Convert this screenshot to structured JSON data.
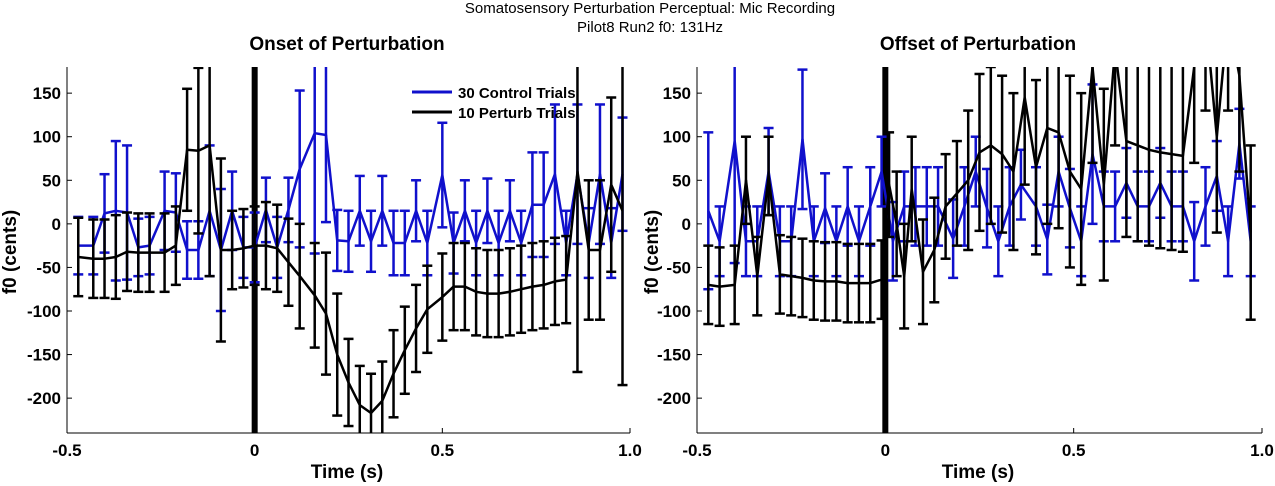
{
  "suptitle": {
    "line1": "Somatosensory Perturbation Perceptual: Mic Recording",
    "line2": "Pilot8 Run2   f0: 131Hz"
  },
  "colors": {
    "control": "#1010cc",
    "perturb": "#000000",
    "marker": "#000000"
  },
  "chart_data": [
    {
      "type": "line",
      "title": "Onset of Perturbation",
      "xlabel": "Time (s)",
      "ylabel": "f0 (cents)",
      "xlim": [
        -0.5,
        1.0
      ],
      "ylim": [
        -240,
        180
      ],
      "xticks": [
        -0.5,
        0,
        0.5,
        1.0
      ],
      "xtick_labels": [
        "-0.5",
        "0",
        "0.5",
        "1.0"
      ],
      "yticks": [
        -200,
        -150,
        -100,
        -50,
        0,
        50,
        100,
        150
      ],
      "ytick_labels": [
        "-200",
        "-150",
        "-100",
        "-50",
        "0",
        "50",
        "100",
        "150"
      ],
      "marker_x": 0,
      "legend": {
        "position": "top-right",
        "entries": [
          "30 Control Trials",
          "10 Perturb Trials"
        ]
      },
      "series": [
        {
          "name": "30 Control Trials",
          "x": [
            -0.47,
            -0.43,
            -0.4,
            -0.37,
            -0.34,
            -0.31,
            -0.28,
            -0.24,
            -0.21,
            -0.18,
            -0.15,
            -0.12,
            -0.09,
            -0.06,
            -0.03,
            0.0,
            0.03,
            0.06,
            0.09,
            0.12,
            0.16,
            0.19,
            0.22,
            0.25,
            0.28,
            0.31,
            0.34,
            0.37,
            0.4,
            0.43,
            0.46,
            0.5,
            0.53,
            0.56,
            0.59,
            0.62,
            0.65,
            0.68,
            0.71,
            0.74,
            0.77,
            0.8,
            0.83,
            0.86,
            0.89,
            0.92,
            0.95,
            0.98
          ],
          "y": [
            -25,
            -25,
            12,
            15,
            13,
            -27,
            -25,
            15,
            13,
            -30,
            -30,
            15,
            -30,
            15,
            -27,
            -27,
            16,
            -27,
            16,
            63,
            104,
            102,
            -19,
            -20,
            15,
            -20,
            15,
            -22,
            -22,
            15,
            -22,
            56,
            -22,
            15,
            -22,
            15,
            -22,
            15,
            -22,
            22,
            22,
            57,
            -22,
            57,
            -22,
            57,
            -22,
            57
          ],
          "err": [
            33,
            33,
            45,
            80,
            77,
            33,
            33,
            45,
            45,
            33,
            33,
            75,
            70,
            45,
            35,
            40,
            37,
            35,
            37,
            90,
            138,
            100,
            35,
            35,
            40,
            35,
            40,
            37,
            37,
            35,
            37,
            60,
            35,
            35,
            37,
            37,
            37,
            35,
            37,
            60,
            60,
            80,
            37,
            80,
            40,
            80,
            40,
            65
          ]
        },
        {
          "name": "10 Perturb Trials",
          "x": [
            -0.47,
            -0.43,
            -0.4,
            -0.37,
            -0.34,
            -0.31,
            -0.28,
            -0.24,
            -0.21,
            -0.18,
            -0.15,
            -0.12,
            -0.09,
            -0.06,
            -0.03,
            0.0,
            0.03,
            0.06,
            0.09,
            0.12,
            0.16,
            0.19,
            0.22,
            0.25,
            0.28,
            0.31,
            0.34,
            0.37,
            0.4,
            0.43,
            0.46,
            0.5,
            0.53,
            0.56,
            0.59,
            0.62,
            0.65,
            0.68,
            0.71,
            0.74,
            0.77,
            0.8,
            0.83,
            0.86,
            0.89,
            0.92,
            0.95,
            0.98
          ],
          "y": [
            -38,
            -40,
            -40,
            -38,
            -32,
            -33,
            -33,
            -33,
            -25,
            85,
            84,
            90,
            -30,
            -30,
            -28,
            -25,
            -25,
            -28,
            -44,
            -60,
            -82,
            -103,
            -150,
            -182,
            -208,
            -217,
            -203,
            -172,
            -145,
            -120,
            -98,
            -84,
            -72,
            -72,
            -78,
            -80,
            -80,
            -78,
            -75,
            -72,
            -70,
            -66,
            -64,
            60,
            -30,
            -30,
            45,
            15
          ],
          "err": [
            45,
            45,
            45,
            48,
            45,
            45,
            45,
            45,
            45,
            70,
            95,
            150,
            105,
            45,
            45,
            45,
            50,
            50,
            50,
            60,
            60,
            70,
            70,
            50,
            45,
            45,
            45,
            50,
            50,
            50,
            50,
            50,
            50,
            50,
            50,
            50,
            50,
            50,
            50,
            50,
            50,
            50,
            50,
            230,
            80,
            80,
            100,
            200
          ]
        }
      ]
    },
    {
      "type": "line",
      "title": "Offset of Perturbation",
      "xlabel": "Time (s)",
      "ylabel": "f0 (cents)",
      "xlim": [
        -0.5,
        1.0
      ],
      "ylim": [
        -240,
        180
      ],
      "xticks": [
        -0.5,
        0,
        0.5,
        1.0
      ],
      "xtick_labels": [
        "-0.5",
        "0",
        "0.5",
        "1.0"
      ],
      "yticks": [
        -200,
        -150,
        -100,
        -50,
        0,
        50,
        100,
        150
      ],
      "ytick_labels": [
        "-200",
        "-150",
        "-100",
        "-50",
        "0",
        "50",
        "100",
        "150"
      ],
      "marker_x": 0,
      "series": [
        {
          "name": "30 Control Trials",
          "x": [
            -0.47,
            -0.44,
            -0.4,
            -0.37,
            -0.34,
            -0.31,
            -0.28,
            -0.25,
            -0.22,
            -0.19,
            -0.16,
            -0.13,
            -0.1,
            -0.07,
            -0.04,
            -0.01,
            0.02,
            0.05,
            0.08,
            0.11,
            0.14,
            0.18,
            0.21,
            0.24,
            0.27,
            0.3,
            0.33,
            0.36,
            0.4,
            0.43,
            0.46,
            0.49,
            0.52,
            0.55,
            0.58,
            0.61,
            0.64,
            0.67,
            0.7,
            0.73,
            0.76,
            0.79,
            0.82,
            0.85,
            0.88,
            0.91,
            0.94,
            0.97
          ],
          "y": [
            15,
            -20,
            95,
            -20,
            -20,
            60,
            -20,
            -20,
            97,
            -20,
            18,
            -20,
            20,
            -20,
            20,
            60,
            -20,
            20,
            20,
            20,
            20,
            -17,
            20,
            60,
            18,
            -20,
            20,
            45,
            20,
            -18,
            60,
            18,
            -20,
            80,
            20,
            20,
            47,
            20,
            20,
            47,
            20,
            20,
            -20,
            20,
            55,
            -20,
            92,
            -20
          ],
          "err": [
            90,
            40,
            140,
            40,
            40,
            50,
            40,
            40,
            80,
            40,
            40,
            40,
            45,
            40,
            45,
            40,
            45,
            40,
            45,
            45,
            45,
            45,
            45,
            40,
            45,
            40,
            45,
            40,
            45,
            40,
            40,
            45,
            40,
            80,
            40,
            40,
            40,
            40,
            40,
            40,
            40,
            40,
            45,
            45,
            40,
            40,
            40,
            40
          ]
        },
        {
          "name": "10 Perturb Trials",
          "x": [
            -0.47,
            -0.44,
            -0.4,
            -0.37,
            -0.34,
            -0.31,
            -0.28,
            -0.25,
            -0.22,
            -0.19,
            -0.16,
            -0.13,
            -0.1,
            -0.07,
            -0.04,
            -0.01,
            0.01,
            0.03,
            0.05,
            0.07,
            0.1,
            0.13,
            0.16,
            0.19,
            0.22,
            0.25,
            0.28,
            0.31,
            0.34,
            0.37,
            0.4,
            0.43,
            0.46,
            0.49,
            0.52,
            0.55,
            0.58,
            0.61,
            0.64,
            0.67,
            0.7,
            0.73,
            0.76,
            0.79,
            0.82,
            0.85,
            0.88,
            0.91,
            0.94,
            0.97
          ],
          "y": [
            -70,
            -72,
            -70,
            50,
            -60,
            55,
            -58,
            -60,
            -62,
            -65,
            -66,
            -66,
            -68,
            -68,
            -68,
            -64,
            45,
            0,
            -60,
            40,
            -55,
            -30,
            20,
            35,
            50,
            82,
            90,
            80,
            60,
            145,
            65,
            110,
            105,
            60,
            40,
            180,
            45,
            200,
            95,
            90,
            85,
            82,
            80,
            78,
            180,
            240,
            100,
            240,
            170,
            -10
          ],
          "err": [
            45,
            45,
            45,
            50,
            45,
            45,
            45,
            45,
            45,
            45,
            45,
            45,
            45,
            45,
            45,
            45,
            60,
            60,
            60,
            60,
            60,
            60,
            60,
            60,
            80,
            90,
            90,
            90,
            90,
            100,
            100,
            110,
            110,
            110,
            110,
            110,
            110,
            110,
            110,
            110,
            110,
            110,
            110,
            110,
            110,
            110,
            110,
            110,
            110,
            100
          ]
        }
      ]
    }
  ]
}
